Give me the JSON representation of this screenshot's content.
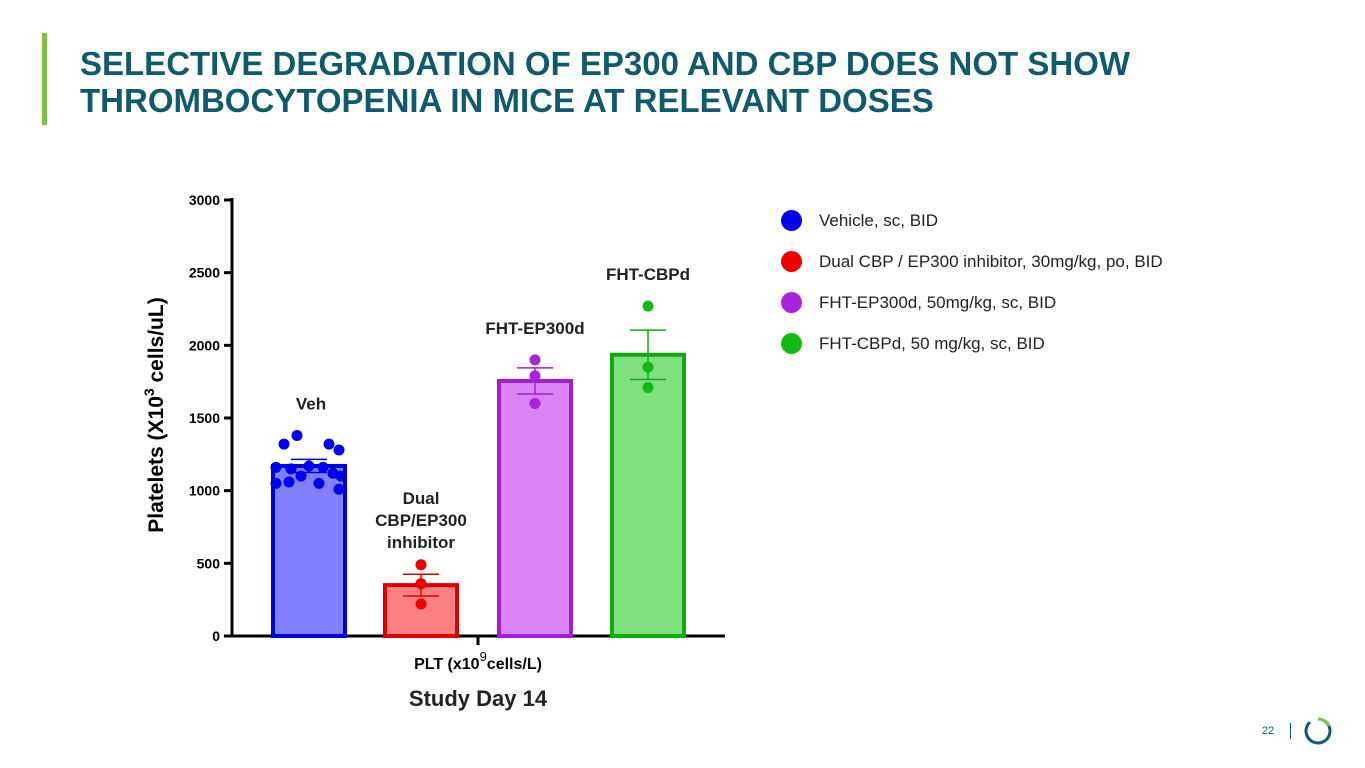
{
  "slide": {
    "title_line1": "SELECTIVE DEGRADATION OF EP300 AND CBP DOES NOT SHOW",
    "title_line2": "THROMBOCYTOPENIA IN MICE AT RELEVANT DOSES",
    "page_number": "22",
    "colors": {
      "title": "#0f5b6b",
      "accent": "#7cc142"
    }
  },
  "legend": [
    {
      "label": "Vehicle, sc, BID",
      "color": "#0000ee"
    },
    {
      "label": "Dual CBP / EP300 inhibitor, 30mg/kg, po, BID",
      "color": "#ee0000"
    },
    {
      "label": "FHT-EP300d, 50mg/kg, sc, BID",
      "color": "#aa22dd"
    },
    {
      "label": "FHT-CBPd, 50 mg/kg, sc, BID",
      "color": "#11bb11"
    }
  ],
  "chart_data": {
    "type": "bar",
    "ylabel_main": "Platelets (X10",
    "ylabel_sup": "3",
    "ylabel_tail": " cells/uL)",
    "xlabel_main": "PLT (x10",
    "xlabel_sup": "9",
    "xlabel_tail": "cells/L)",
    "subtitle": "Study Day 14",
    "ylim": [
      0,
      3000
    ],
    "yticks": [
      0,
      500,
      1000,
      1500,
      2000,
      2500,
      3000
    ],
    "series": [
      {
        "name": "Veh",
        "label_lines": [
          "Veh"
        ],
        "value": 1170,
        "sem": 45,
        "points": [
          1380,
          1320,
          1320,
          1280,
          1170,
          1160,
          1160,
          1150,
          1120,
          1100,
          1100,
          1060,
          1050,
          1050,
          1010
        ],
        "fill": "#8080ff",
        "stroke": "#0000dd",
        "point_color": "#0000ee"
      },
      {
        "name": "Dual CBP/EP300 inhibitor",
        "label_lines": [
          "Dual",
          "CBP/EP300",
          "inhibitor"
        ],
        "value": 350,
        "sem": 75,
        "points": [
          490,
          360,
          220
        ],
        "fill": "#ff8080",
        "stroke": "#dd0000",
        "point_color": "#ee0000"
      },
      {
        "name": "FHT-EP300d",
        "label_lines": [
          "FHT-EP300d"
        ],
        "value": 1755,
        "sem": 90,
        "points": [
          1900,
          1790,
          1600
        ],
        "fill": "#d884f4",
        "stroke": "#a020d0",
        "point_color": "#aa22dd"
      },
      {
        "name": "FHT-CBPd",
        "label_lines": [
          "FHT-CBPd"
        ],
        "value": 1935,
        "sem": 170,
        "points": [
          2270,
          1850,
          1710
        ],
        "fill": "#80e080",
        "stroke": "#11aa11",
        "point_color": "#11bb11"
      }
    ]
  }
}
